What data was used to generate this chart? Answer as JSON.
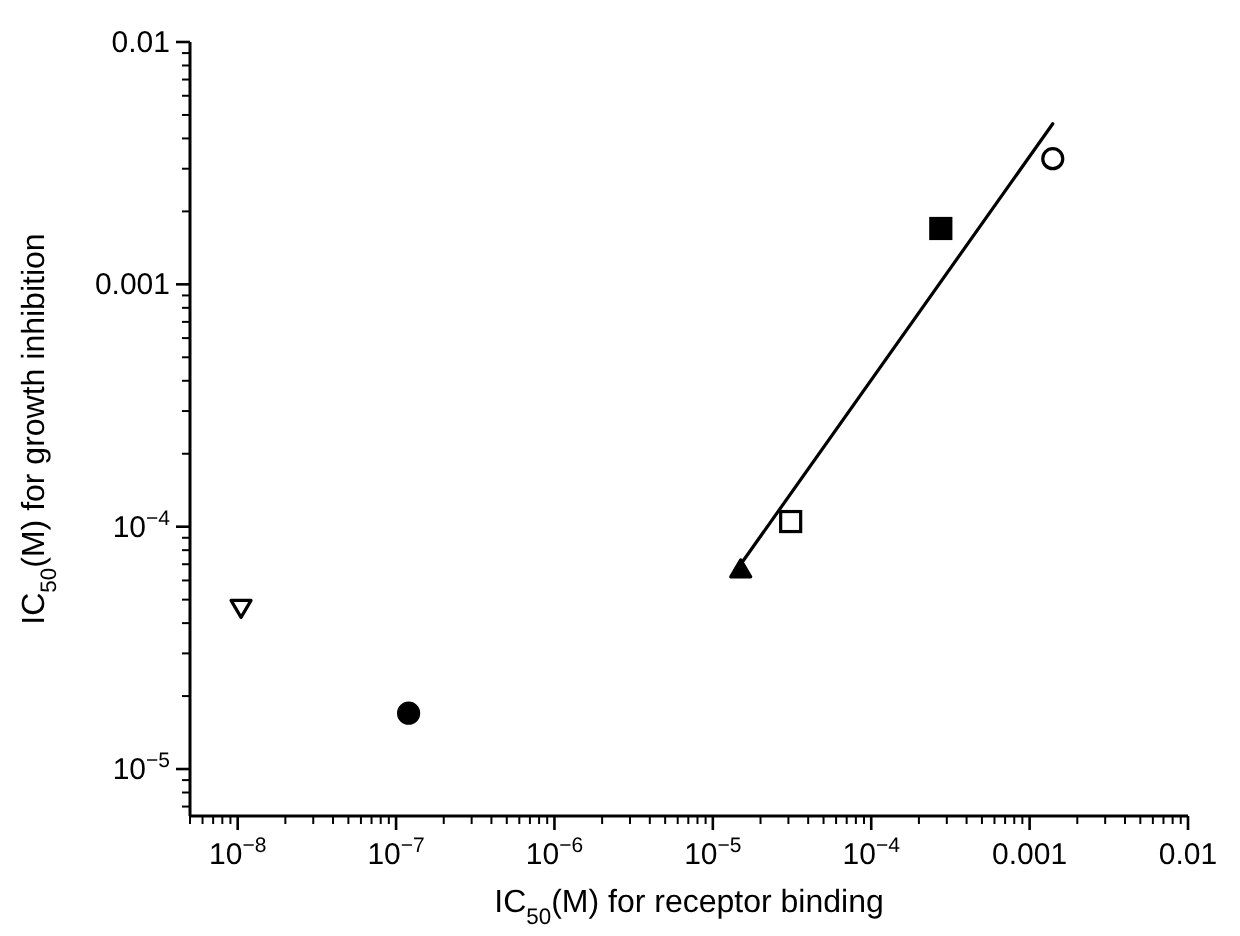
{
  "chart_data": {
    "type": "scatter",
    "xlabel": "IC$_{50}$(M) for receptor binding",
    "ylabel": "IC$_{50}$(M) for growth inhibition",
    "log": "xy",
    "grid": false,
    "xlim": [
      5e-09,
      0.01
    ],
    "ylim": [
      6.4e-06,
      0.01
    ],
    "xticks": [
      {
        "value": 1e-08,
        "label": "10$^{−8}$"
      },
      {
        "value": 1e-07,
        "label": "10$^{−7}$"
      },
      {
        "value": 1e-06,
        "label": "10$^{−6}$"
      },
      {
        "value": 1e-05,
        "label": "10$^{−5}$"
      },
      {
        "value": 0.0001,
        "label": "10$^{−4}$"
      },
      0.001,
      0.01
    ],
    "yticks": [
      {
        "value": 1e-05,
        "label": "10$^{−5}$"
      },
      {
        "value": 0.0001,
        "label": "10$^{−4}$"
      },
      0.001,
      0.01
    ],
    "series": [
      {
        "color": "#ffffff",
        "marker": "triangle",
        "x": [
          1.05e-08
        ],
        "values": [
          4.6e-05
        ]
      },
      {
        "color": "#000000",
        "marker": "circle",
        "x": [
          1.2e-07
        ],
        "values": [
          1.7e-05
        ]
      },
      {
        "color": "#000000",
        "marker": "triangle",
        "x": [
          1.5e-05
        ],
        "values": [
          6.7e-05
        ]
      },
      {
        "color": "#ffffff",
        "marker": "square",
        "x": [
          3.1e-05
        ],
        "values": [
          0.000105
        ]
      },
      {
        "color": "#000000",
        "marker": "square",
        "x": [
          0.000275
        ],
        "values": [
          0.0017
        ]
      },
      {
        "color": "#ffffff",
        "marker": "circle",
        "x": [
          0.0014
        ],
        "values": [
          0.0033
        ]
      },
      {
        "type": "line",
        "color": "#000000",
        "marker": "none",
        "line_style": "solid",
        "x": [
          1.5e-05,
          0.0014
        ],
        "values": [
          7e-05,
          0.0046
        ]
      }
    ]
  }
}
